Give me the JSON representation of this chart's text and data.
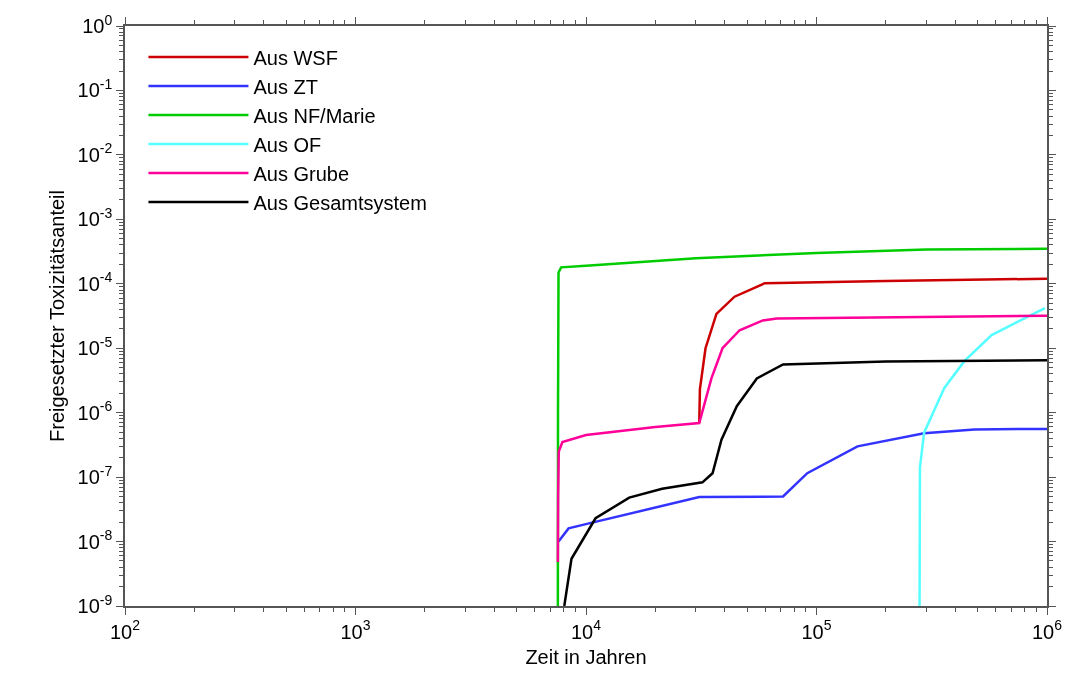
{
  "chart_data": {
    "type": "line",
    "xlabel": "Zeit in Jahren",
    "ylabel": "Freigesetzter Toxizitätsanteil",
    "log": "xy",
    "legend": "top left",
    "marker": "none",
    "line_style": "solid",
    "xlim": [
      100,
      1000000
    ],
    "xticks": [
      {
        "value": 100,
        "label": "10$^{2}$"
      },
      {
        "value": 1000,
        "label": "10$^{3}$"
      },
      {
        "value": 10000,
        "label": "10$^{4}$"
      },
      {
        "value": 100000,
        "label": "10$^{5}$"
      },
      {
        "value": 1000000,
        "label": "10$^{6}$"
      }
    ],
    "ylim": [
      1e-09,
      1
    ],
    "yticks": [
      {
        "value": 1e-09,
        "label": "10$^{-9}$"
      },
      {
        "value": 1e-08,
        "label": "10$^{-8}$"
      },
      {
        "value": 1e-07,
        "label": "10$^{-7}$"
      },
      {
        "value": 1e-06,
        "label": "10$^{-6}$"
      },
      {
        "value": 1e-05,
        "label": "10$^{-5}$"
      },
      {
        "value": 0.0001,
        "label": "10$^{-4}$"
      },
      {
        "value": 0.001,
        "label": "10$^{-3}$"
      },
      {
        "value": 0.01,
        "label": "10$^{-2}$"
      },
      {
        "value": 0.1,
        "label": "10$^{-1}$"
      },
      {
        "value": 1,
        "label": "10$^{0}$"
      }
    ],
    "series": [
      {
        "name": "Aus WSF",
        "color": "#cc0000",
        "x": [
          31000,
          31200,
          33000,
          36800,
          44100,
          59700,
          200000,
          1000000
        ],
        "values": [
          6.9e-07,
          2.3e-06,
          1e-05,
          3.4e-05,
          6.3e-05,
          0.000102,
          0.00011,
          0.00012
        ]
      },
      {
        "name": "Aus ZT",
        "color": "#3333ff",
        "x": [
          7600,
          8400,
          10200,
          31000,
          71600,
          91200,
          150600,
          293000,
          484000,
          1000000
        ],
        "values": [
          1e-08,
          1.6e-08,
          1.9e-08,
          4.9e-08,
          5e-08,
          1.15e-07,
          3e-07,
          4.8e-07,
          5.5e-07,
          5.6e-07
        ]
      },
      {
        "name": "Aus NF/Marie",
        "color": "#00cc00",
        "x": [
          7550,
          7560,
          7600,
          7800,
          10000,
          30000,
          100000,
          300000,
          1000000
        ],
        "values": [
          1e-09,
          1e-06,
          0.00015,
          0.00018,
          0.00019,
          0.00025,
          0.0003,
          0.00034,
          0.00035
        ]
      },
      {
        "name": "Aus OF",
        "color": "#55ffff",
        "x": [
          280000,
          281000,
          293000,
          358000,
          438000,
          575000,
          980000
        ],
        "values": [
          1e-09,
          1.4e-07,
          4.9e-07,
          2.4e-06,
          6.3e-06,
          1.6e-05,
          4.2e-05
        ]
      },
      {
        "name": "Aus Grube",
        "color": "#ff0099",
        "x": [
          7550,
          7570,
          7620,
          7900,
          10000,
          20000,
          31000,
          35000,
          39100,
          46400,
          58500,
          67300,
          1000000
        ],
        "values": [
          4.8e-09,
          5e-08,
          2.5e-07,
          3.5e-07,
          4.5e-07,
          6e-07,
          6.9e-07,
          3.4e-06,
          1e-05,
          1.9e-05,
          2.7e-05,
          2.9e-05,
          3.2e-05
        ]
      },
      {
        "name": "Aus Gesamtsystem",
        "color": "#000000",
        "x": [
          8050,
          8650,
          11000,
          15400,
          21400,
          32000,
          35400,
          38700,
          45100,
          55100,
          71600,
          200000,
          1000000
        ],
        "values": [
          1e-09,
          5.4e-09,
          2.3e-08,
          4.8e-08,
          6.6e-08,
          8.3e-08,
          1.15e-07,
          3.8e-07,
          1.26e-06,
          3.4e-06,
          5.6e-06,
          6.2e-06,
          6.5e-06
        ]
      }
    ]
  }
}
